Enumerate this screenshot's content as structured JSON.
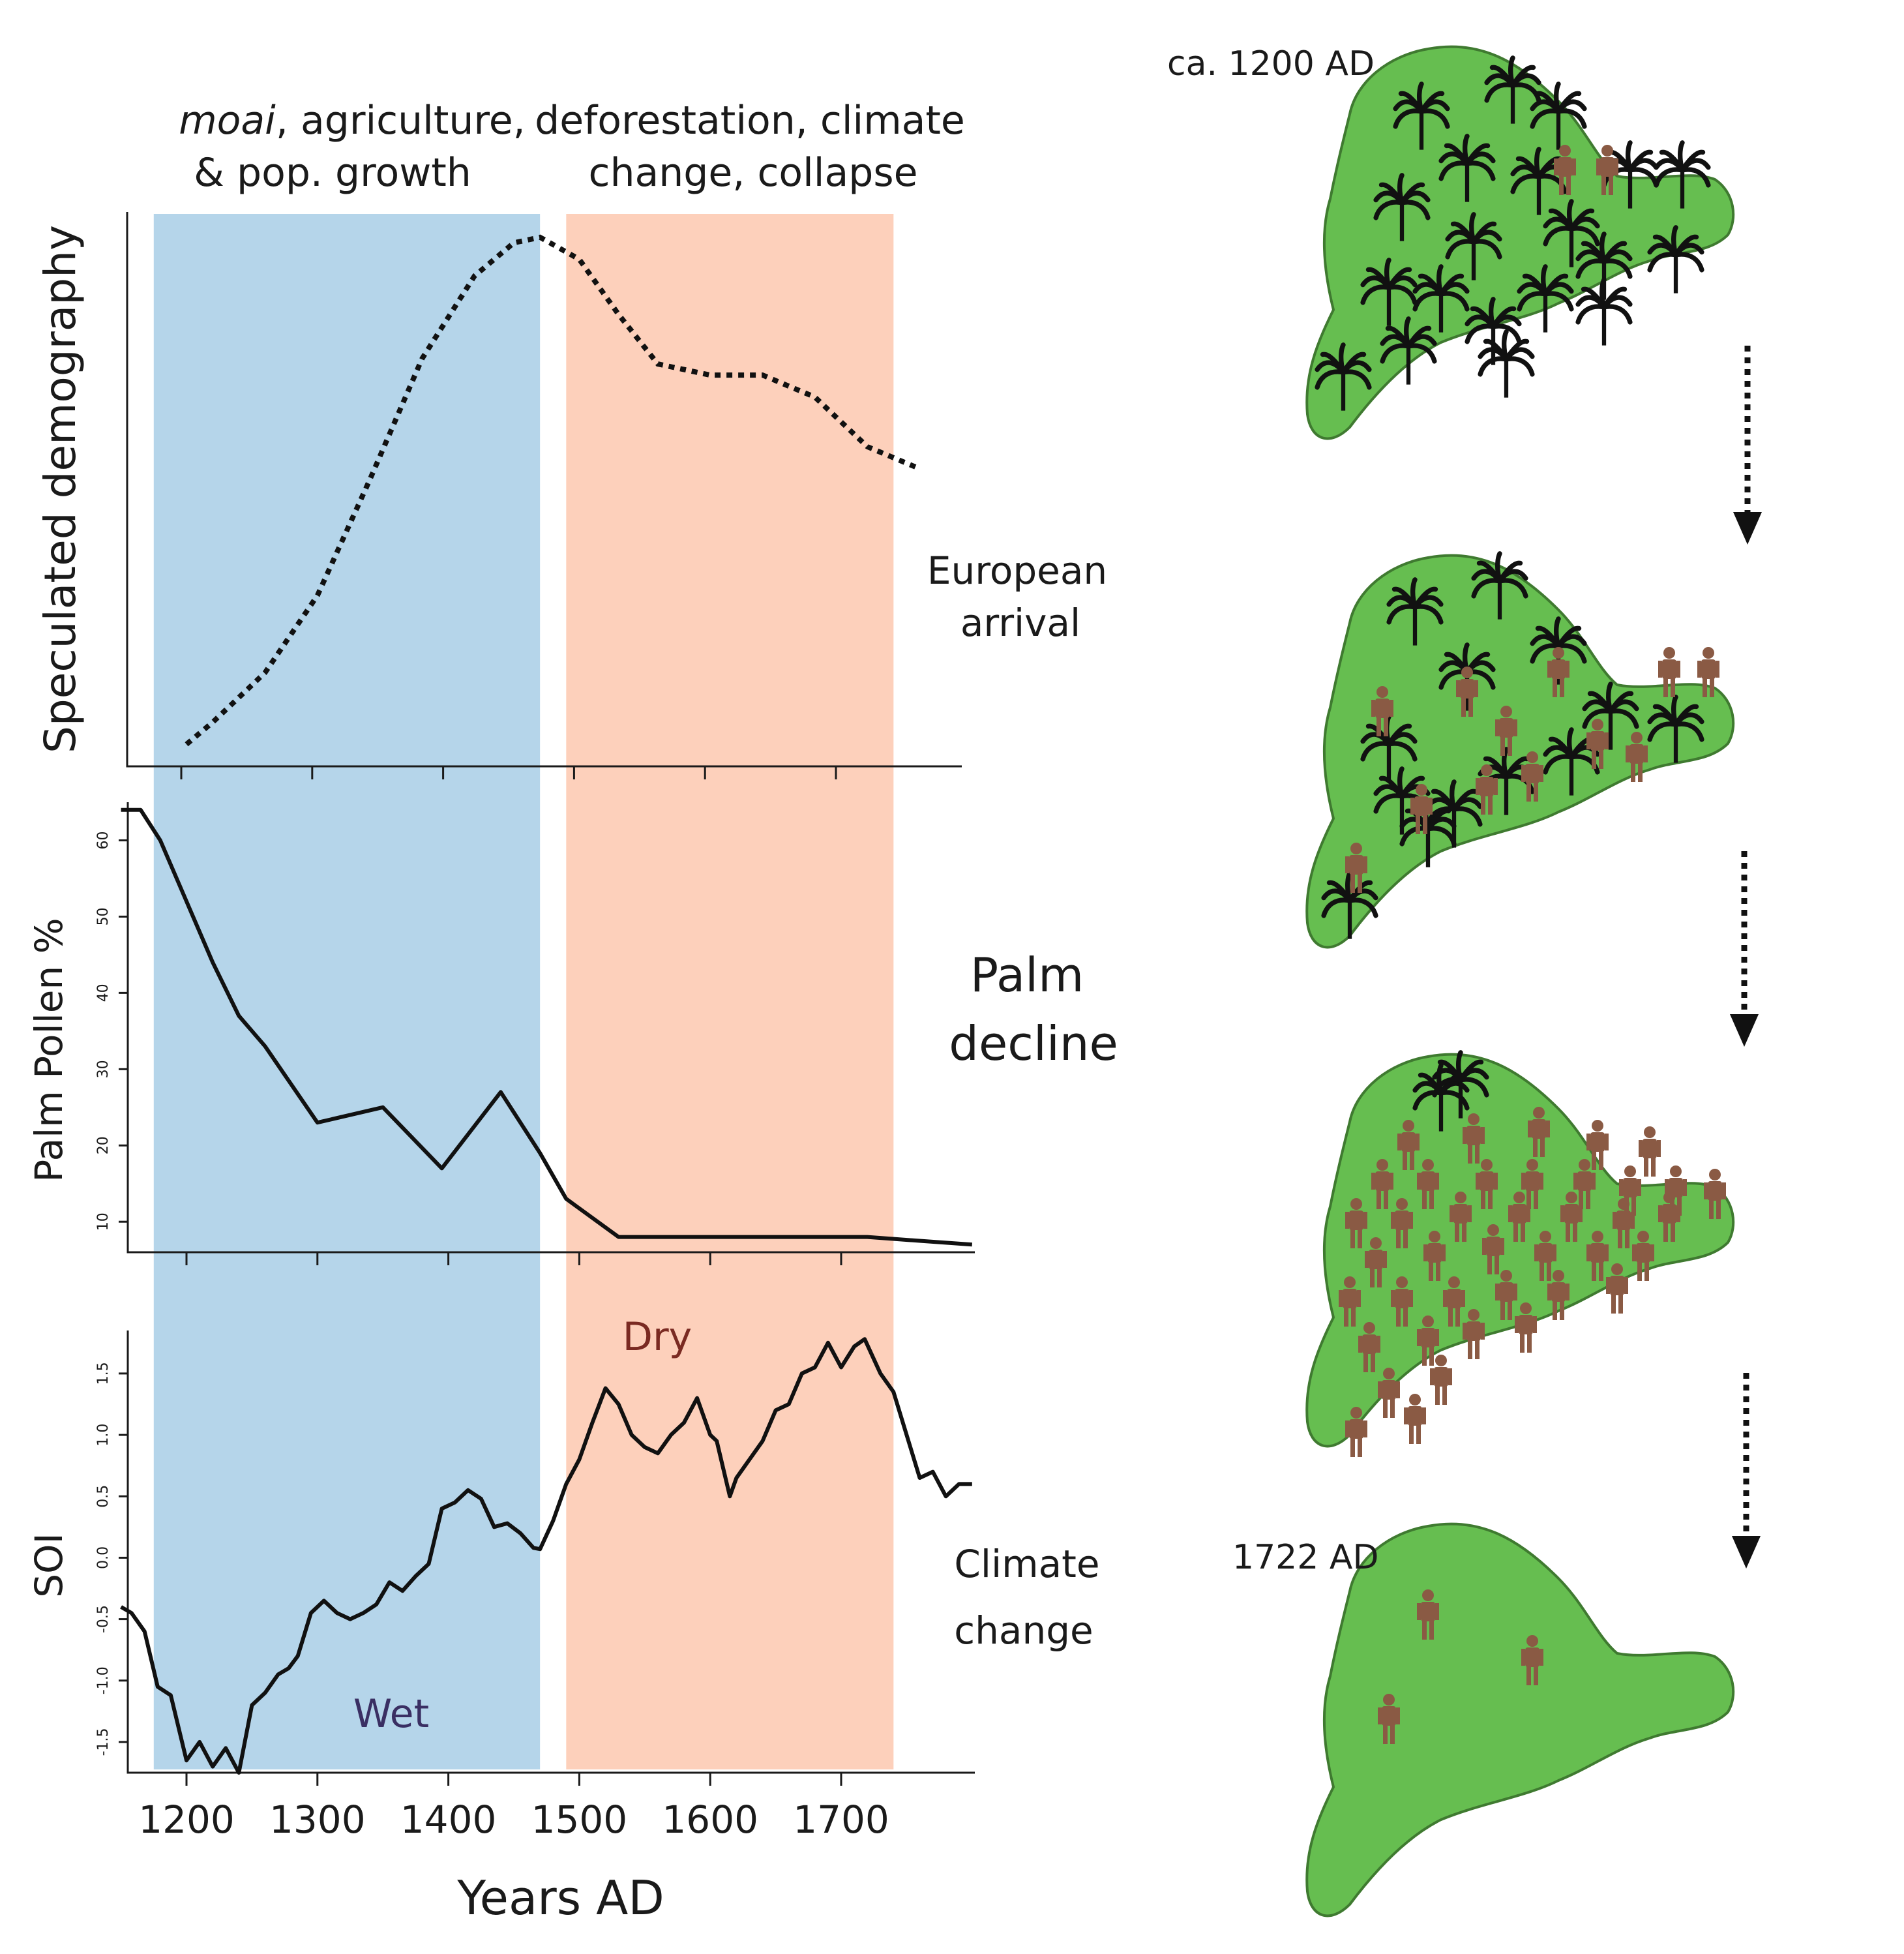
{
  "chart_data": [
    {
      "type": "line",
      "name": "demography",
      "ylabel": "Speculated demography",
      "line_style": "dotted",
      "x": [
        1200,
        1220,
        1260,
        1300,
        1340,
        1380,
        1420,
        1450,
        1470,
        1500,
        1530,
        1560,
        1600,
        1640,
        1680,
        1720,
        1760
      ],
      "values": [
        0.04,
        0.08,
        0.17,
        0.31,
        0.52,
        0.74,
        0.89,
        0.95,
        0.96,
        0.92,
        0.82,
        0.73,
        0.71,
        0.71,
        0.67,
        0.58,
        0.54
      ],
      "end_annotation": "European arrival"
    },
    {
      "type": "line",
      "name": "palm-pollen",
      "ylabel": "Palm Pollen %",
      "side_label_line1": "Palm",
      "side_label_line2": "decline",
      "yticks": [
        10,
        20,
        30,
        40,
        50,
        60
      ],
      "x": [
        1150,
        1165,
        1180,
        1200,
        1220,
        1240,
        1260,
        1300,
        1350,
        1395,
        1440,
        1470,
        1490,
        1530,
        1600,
        1650,
        1720,
        1760,
        1800
      ],
      "values": [
        64,
        64,
        60,
        52,
        44,
        37,
        33,
        23,
        25,
        17,
        27,
        19,
        13,
        8,
        8,
        8,
        8,
        7.5,
        7
      ]
    },
    {
      "type": "line",
      "name": "soi",
      "ylabel": "SOI",
      "side_label_line1": "Climate",
      "side_label_line2": "change",
      "yticks": [
        -1.5,
        -1.0,
        -0.5,
        0.0,
        0.5,
        1.0,
        1.5
      ],
      "ytick_labels": [
        "-1.5",
        "-1.0",
        "-0.5",
        "0.0",
        "0.5",
        "1.0",
        "1.5"
      ],
      "x": [
        1150,
        1158,
        1168,
        1178,
        1188,
        1200,
        1210,
        1220,
        1230,
        1240,
        1250,
        1260,
        1270,
        1278,
        1285,
        1295,
        1305,
        1315,
        1325,
        1335,
        1345,
        1355,
        1365,
        1375,
        1385,
        1395,
        1405,
        1415,
        1425,
        1435,
        1445,
        1455,
        1465,
        1470,
        1480,
        1490,
        1500,
        1510,
        1520,
        1530,
        1540,
        1550,
        1560,
        1570,
        1580,
        1590,
        1600,
        1605,
        1615,
        1620,
        1630,
        1640,
        1650,
        1660,
        1670,
        1680,
        1690,
        1700,
        1710,
        1718,
        1730,
        1740,
        1750,
        1760,
        1770,
        1780,
        1790,
        1800
      ],
      "values": [
        -0.4,
        -0.45,
        -0.6,
        -1.05,
        -1.12,
        -1.65,
        -1.5,
        -1.7,
        -1.55,
        -1.75,
        -1.2,
        -1.1,
        -0.95,
        -0.9,
        -0.8,
        -0.45,
        -0.35,
        -0.45,
        -0.5,
        -0.45,
        -0.38,
        -0.2,
        -0.27,
        -0.15,
        -0.05,
        0.4,
        0.45,
        0.55,
        0.48,
        0.25,
        0.28,
        0.2,
        0.08,
        0.07,
        0.3,
        0.6,
        0.8,
        1.1,
        1.38,
        1.25,
        1.0,
        0.9,
        0.85,
        1.0,
        1.1,
        1.3,
        1.0,
        0.95,
        0.5,
        0.65,
        0.8,
        0.95,
        1.2,
        1.25,
        1.5,
        1.55,
        1.75,
        1.55,
        1.72,
        1.78,
        1.5,
        1.35,
        1.0,
        0.65,
        0.7,
        0.5,
        0.6,
        0.6
      ],
      "band_labels": {
        "wet": "Wet",
        "dry": "Dry"
      }
    }
  ],
  "x_axis": {
    "label": "Years AD",
    "ticks": [
      1200,
      1300,
      1400,
      1500,
      1600,
      1700
    ],
    "range": [
      1150,
      1800
    ]
  },
  "periods": [
    {
      "name": "wet-period",
      "start": 1175,
      "end": 1470,
      "color": "#b5d5ea",
      "label_line1_em": "moai",
      "label_line1_rest": ", agriculture,",
      "label_line2": "& pop. growth"
    },
    {
      "name": "dry-period",
      "start": 1490,
      "end": 1740,
      "color": "#fdd0bb",
      "label_line1": "deforestation, climate",
      "label_line2": "change, collapse"
    }
  ],
  "islands": [
    {
      "label": "ca. 1200 AD",
      "palms": 20,
      "people": 2
    },
    {
      "label": "",
      "palms": 13,
      "people": 12
    },
    {
      "label": "",
      "palms": 2,
      "people": 40
    },
    {
      "label": "1722 AD",
      "palms": 0,
      "people": 3
    }
  ],
  "colors": {
    "island": "#66be50",
    "island_edge": "#3f7a30",
    "person": "#8a5a44",
    "palm": "#111111",
    "wet_label": "#3a2f63",
    "dry_label": "#7a2a22"
  }
}
